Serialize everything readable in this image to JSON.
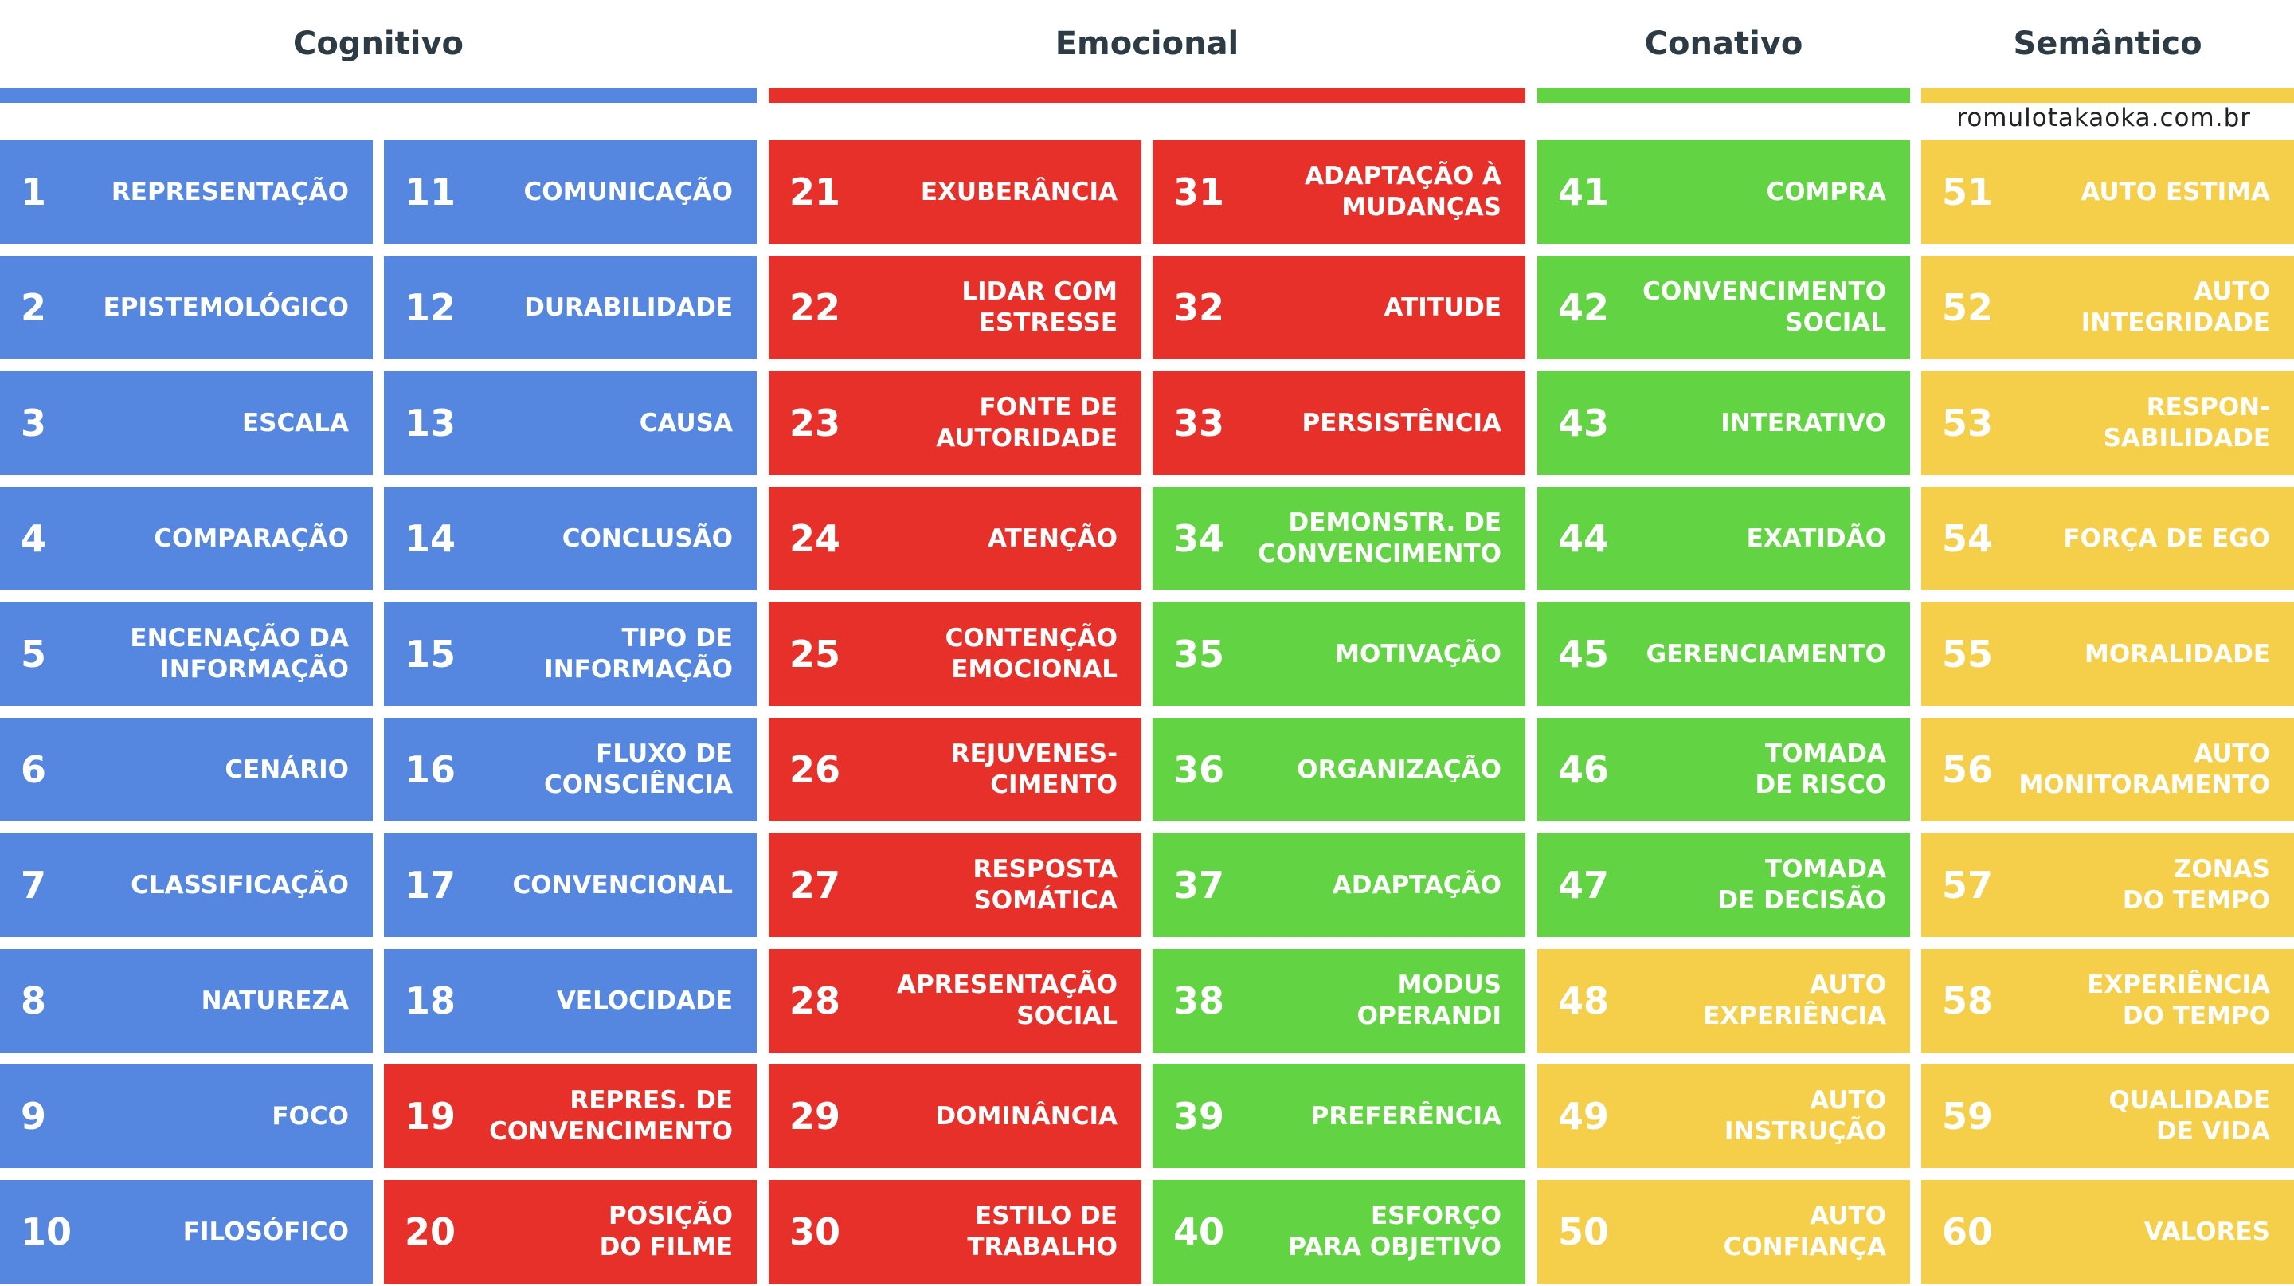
{
  "headers": [
    {
      "title": "Cognitivo",
      "color": "#5586e0"
    },
    {
      "title": "Emocional",
      "color": "#e8302a"
    },
    {
      "title": "Conativo",
      "color": "#62d444"
    },
    {
      "title": "Semântico",
      "color": "#f5ce4a"
    }
  ],
  "site": "romulotakaoka.com.br",
  "columns": [
    [
      {
        "number": 1,
        "label": "REPRESENTAÇÃO",
        "color": "#5586e0"
      },
      {
        "number": 2,
        "label": "EPISTEMOLÓGICO",
        "color": "#5586e0"
      },
      {
        "number": 3,
        "label": "ESCALA",
        "color": "#5586e0"
      },
      {
        "number": 4,
        "label": "COMPARAÇÃO",
        "color": "#5586e0"
      },
      {
        "number": 5,
        "label": "ENCENAÇÃO DA\nINFORMAÇÃO",
        "color": "#5586e0"
      },
      {
        "number": 6,
        "label": "CENÁRIO",
        "color": "#5586e0"
      },
      {
        "number": 7,
        "label": "CLASSIFICAÇÃO",
        "color": "#5586e0"
      },
      {
        "number": 8,
        "label": "NATUREZA",
        "color": "#5586e0"
      },
      {
        "number": 9,
        "label": "FOCO",
        "color": "#5586e0"
      },
      {
        "number": 10,
        "label": "FILOSÓFICO",
        "color": "#5586e0"
      }
    ],
    [
      {
        "number": 11,
        "label": "COMUNICAÇÃO",
        "color": "#5586e0"
      },
      {
        "number": 12,
        "label": "DURABILIDADE",
        "color": "#5586e0"
      },
      {
        "number": 13,
        "label": "CAUSA",
        "color": "#5586e0"
      },
      {
        "number": 14,
        "label": "CONCLUSÃO",
        "color": "#5586e0"
      },
      {
        "number": 15,
        "label": "TIPO DE\nINFORMAÇÃO",
        "color": "#5586e0"
      },
      {
        "number": 16,
        "label": "FLUXO DE\nCONSCIÊNCIA",
        "color": "#5586e0"
      },
      {
        "number": 17,
        "label": "CONVENCIONAL",
        "color": "#5586e0"
      },
      {
        "number": 18,
        "label": "VELOCIDADE",
        "color": "#5586e0"
      },
      {
        "number": 19,
        "label": "REPRES. DE\nCONVENCIMENTO",
        "color": "#e8302a"
      },
      {
        "number": 20,
        "label": "POSIÇÃO\nDO FILME",
        "color": "#e8302a"
      }
    ],
    [
      {
        "number": 21,
        "label": "EXUBERÂNCIA",
        "color": "#e8302a"
      },
      {
        "number": 22,
        "label": "LIDAR COM\nESTRESSE",
        "color": "#e8302a"
      },
      {
        "number": 23,
        "label": "FONTE DE\nAUTORIDADE",
        "color": "#e8302a"
      },
      {
        "number": 24,
        "label": "ATENÇÃO",
        "color": "#e8302a"
      },
      {
        "number": 25,
        "label": "CONTENÇÃO\nEMOCIONAL",
        "color": "#e8302a"
      },
      {
        "number": 26,
        "label": "REJUVENES-\nCIMENTO",
        "color": "#e8302a"
      },
      {
        "number": 27,
        "label": "RESPOSTA\nSOMÁTICA",
        "color": "#e8302a"
      },
      {
        "number": 28,
        "label": "APRESENTAÇÃO\nSOCIAL",
        "color": "#e8302a"
      },
      {
        "number": 29,
        "label": "DOMINÂNCIA",
        "color": "#e8302a"
      },
      {
        "number": 30,
        "label": "ESTILO DE\nTRABALHO",
        "color": "#e8302a"
      }
    ],
    [
      {
        "number": 31,
        "label": "ADAPTAÇÃO À\nMUDANÇAS",
        "color": "#e8302a"
      },
      {
        "number": 32,
        "label": "ATITUDE",
        "color": "#e8302a"
      },
      {
        "number": 33,
        "label": "PERSISTÊNCIA",
        "color": "#e8302a"
      },
      {
        "number": 34,
        "label": "DEMONSTR. DE\nCONVENCIMENTO",
        "color": "#62d444"
      },
      {
        "number": 35,
        "label": "MOTIVAÇÃO",
        "color": "#62d444"
      },
      {
        "number": 36,
        "label": "ORGANIZAÇÃO",
        "color": "#62d444"
      },
      {
        "number": 37,
        "label": "ADAPTAÇÃO",
        "color": "#62d444"
      },
      {
        "number": 38,
        "label": "MODUS\nOPERANDI",
        "color": "#62d444"
      },
      {
        "number": 39,
        "label": "PREFERÊNCIA",
        "color": "#62d444"
      },
      {
        "number": 40,
        "label": "ESFORÇO\nPARA OBJETIVO",
        "color": "#62d444"
      }
    ],
    [
      {
        "number": 41,
        "label": "COMPRA",
        "color": "#62d444"
      },
      {
        "number": 42,
        "label": "CONVENCIMENTO\nSOCIAL",
        "color": "#62d444"
      },
      {
        "number": 43,
        "label": "INTERATIVO",
        "color": "#62d444"
      },
      {
        "number": 44,
        "label": "EXATIDÃO",
        "color": "#62d444"
      },
      {
        "number": 45,
        "label": "GERENCIAMENTO",
        "color": "#62d444"
      },
      {
        "number": 46,
        "label": "TOMADA\nDE RISCO",
        "color": "#62d444"
      },
      {
        "number": 47,
        "label": "TOMADA\nDE DECISÃO",
        "color": "#62d444"
      },
      {
        "number": 48,
        "label": "AUTO\nEXPERIÊNCIA",
        "color": "#f5ce4a"
      },
      {
        "number": 49,
        "label": "AUTO\nINSTRUÇÃO",
        "color": "#f5ce4a"
      },
      {
        "number": 50,
        "label": "AUTO\nCONFIANÇA",
        "color": "#f5ce4a"
      }
    ],
    [
      {
        "number": 51,
        "label": "AUTO ESTIMA",
        "color": "#f5ce4a"
      },
      {
        "number": 52,
        "label": "AUTO\nINTEGRIDADE",
        "color": "#f5ce4a"
      },
      {
        "number": 53,
        "label": "RESPON-\nSABILIDADE",
        "color": "#f5ce4a"
      },
      {
        "number": 54,
        "label": "FORÇA DE EGO",
        "color": "#f5ce4a"
      },
      {
        "number": 55,
        "label": "MORALIDADE",
        "color": "#f5ce4a"
      },
      {
        "number": 56,
        "label": "AUTO\nMONITORAMENTO",
        "color": "#f5ce4a"
      },
      {
        "number": 57,
        "label": "ZONAS\nDO TEMPO",
        "color": "#f5ce4a"
      },
      {
        "number": 58,
        "label": "EXPERIÊNCIA\nDO TEMPO",
        "color": "#f5ce4a"
      },
      {
        "number": 59,
        "label": "QUALIDADE\nDE VIDA",
        "color": "#f5ce4a"
      },
      {
        "number": 60,
        "label": "VALORES",
        "color": "#f5ce4a"
      }
    ]
  ]
}
